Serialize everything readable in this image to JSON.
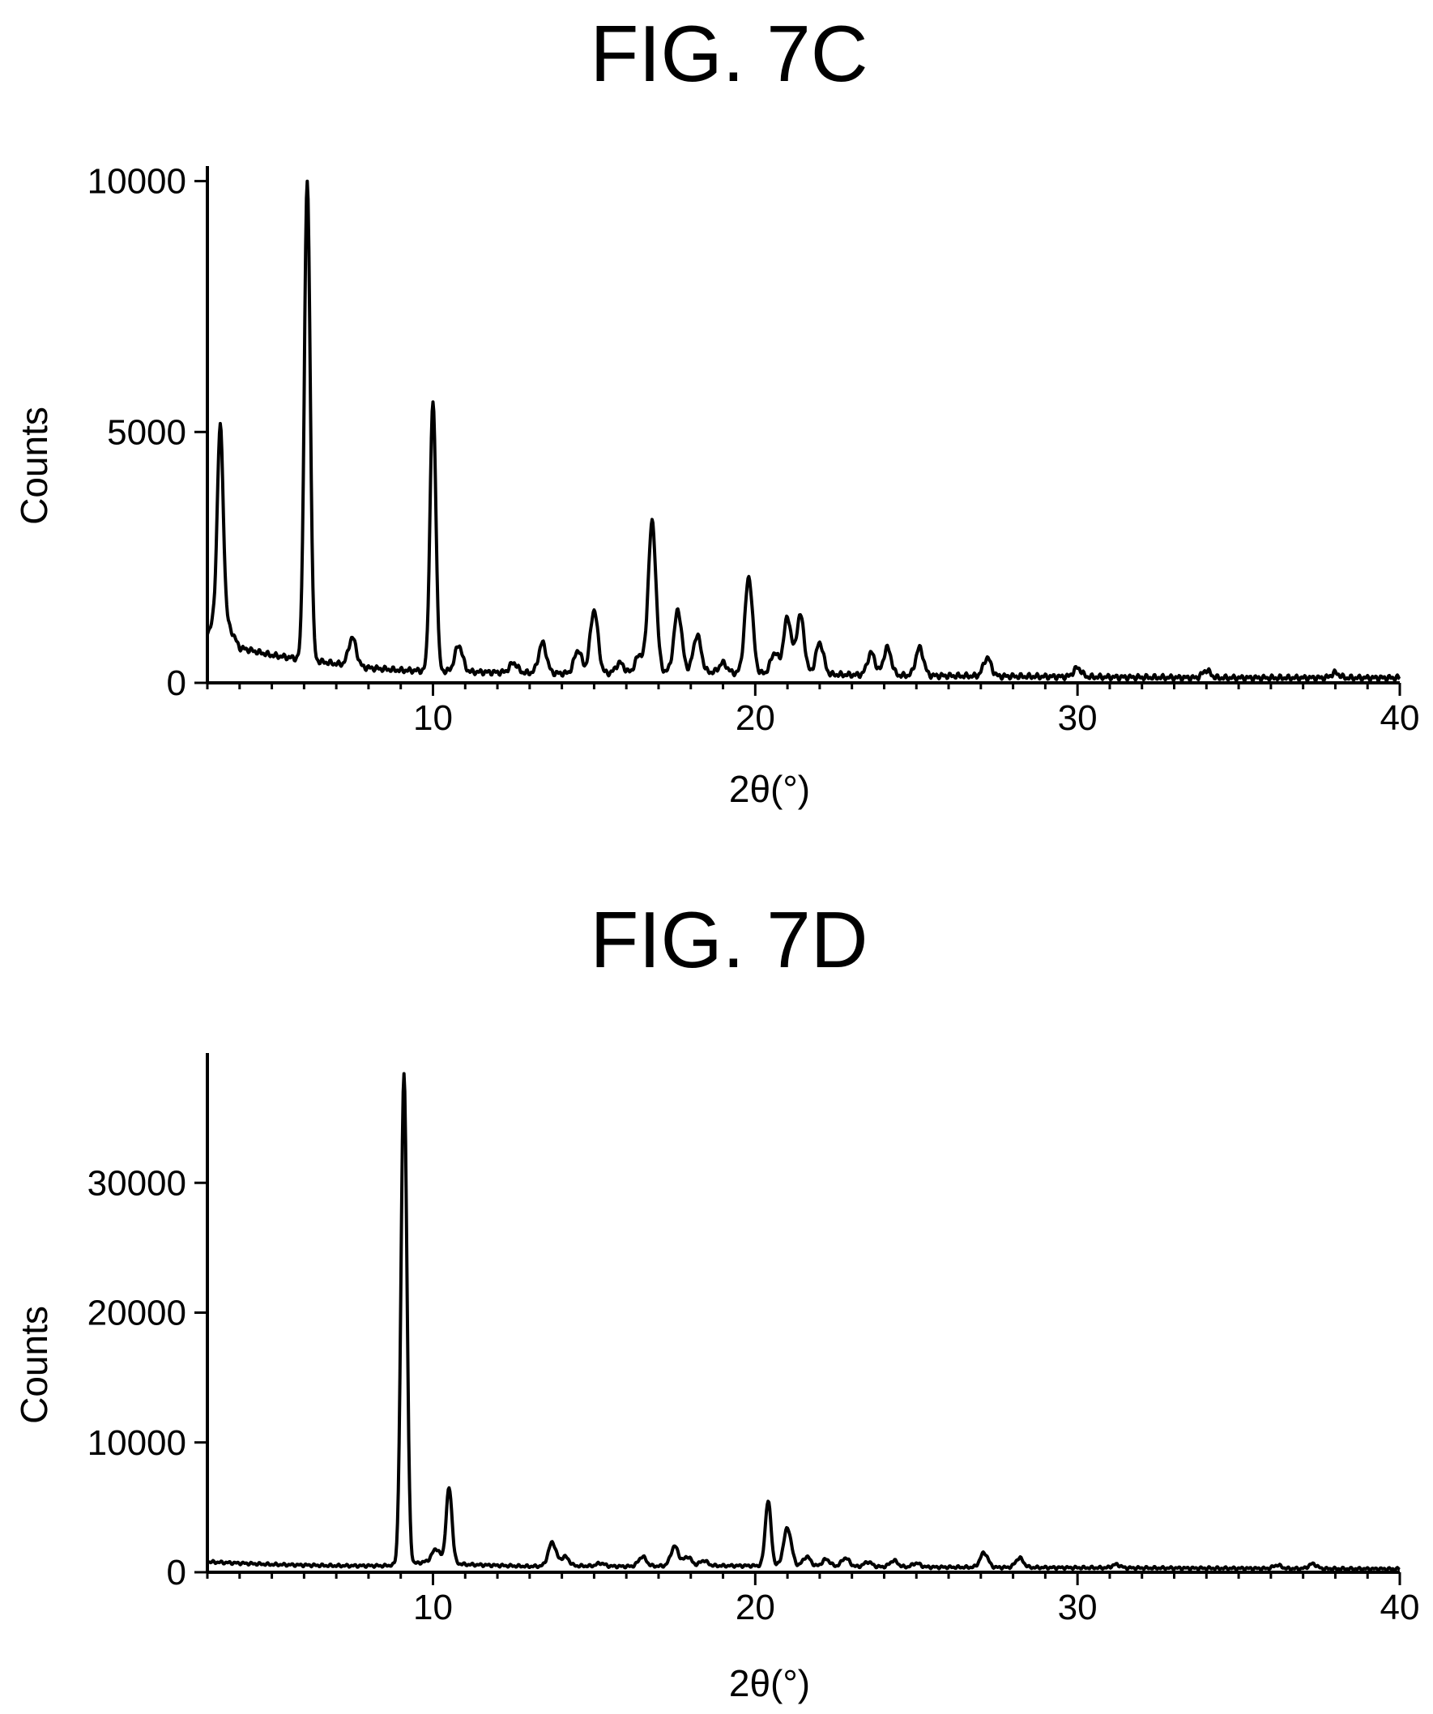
{
  "chart_data": [
    {
      "type": "line",
      "title": "FIG. 7C",
      "xlabel": "2θ(°)",
      "ylabel": "Counts",
      "xlim": [
        3,
        40
      ],
      "ylim": [
        0,
        10300
      ],
      "xticks": [
        10,
        20,
        30,
        40
      ],
      "yticks": [
        0,
        5000,
        10000
      ],
      "grid": false,
      "legend": "none",
      "baseline": [
        [
          3.0,
          1000
        ],
        [
          3.4,
          1500
        ],
        [
          4.0,
          700
        ],
        [
          5.0,
          550
        ],
        [
          6.0,
          470
        ],
        [
          7.0,
          380
        ],
        [
          8.0,
          300
        ],
        [
          9.0,
          250
        ],
        [
          10.0,
          240
        ],
        [
          11.0,
          220
        ],
        [
          12.0,
          210
        ],
        [
          13.0,
          200
        ],
        [
          14.0,
          190
        ],
        [
          15.0,
          190
        ],
        [
          16.0,
          200
        ],
        [
          17.0,
          220
        ],
        [
          18.0,
          230
        ],
        [
          19.0,
          200
        ],
        [
          20.0,
          190
        ],
        [
          22.0,
          170
        ],
        [
          24.0,
          150
        ],
        [
          26.0,
          140
        ],
        [
          28.0,
          130
        ],
        [
          30.0,
          120
        ],
        [
          32.0,
          110
        ],
        [
          34.0,
          100
        ],
        [
          36.0,
          100
        ],
        [
          38.0,
          100
        ],
        [
          40.0,
          100
        ]
      ],
      "peaks": [
        {
          "x": 3.4,
          "y": 5150
        },
        {
          "x": 6.1,
          "y": 10000
        },
        {
          "x": 7.5,
          "y": 900
        },
        {
          "x": 10.0,
          "y": 5600
        },
        {
          "x": 10.8,
          "y": 750
        },
        {
          "x": 12.5,
          "y": 400
        },
        {
          "x": 13.4,
          "y": 800
        },
        {
          "x": 14.5,
          "y": 650
        },
        {
          "x": 15.0,
          "y": 1450
        },
        {
          "x": 15.8,
          "y": 400
        },
        {
          "x": 16.4,
          "y": 550
        },
        {
          "x": 16.8,
          "y": 3200
        },
        {
          "x": 17.6,
          "y": 1450
        },
        {
          "x": 18.2,
          "y": 950
        },
        {
          "x": 19.0,
          "y": 400
        },
        {
          "x": 19.8,
          "y": 2100
        },
        {
          "x": 20.6,
          "y": 600
        },
        {
          "x": 21.0,
          "y": 1300
        },
        {
          "x": 21.4,
          "y": 1350
        },
        {
          "x": 22.0,
          "y": 800
        },
        {
          "x": 23.6,
          "y": 600
        },
        {
          "x": 24.1,
          "y": 700
        },
        {
          "x": 25.1,
          "y": 700
        },
        {
          "x": 27.2,
          "y": 500
        },
        {
          "x": 30.0,
          "y": 300
        },
        {
          "x": 34.0,
          "y": 250
        },
        {
          "x": 38.0,
          "y": 200
        }
      ]
    },
    {
      "type": "line",
      "title": "FIG. 7D",
      "xlabel": "2θ(°)",
      "ylabel": "Counts",
      "xlim": [
        3,
        40
      ],
      "ylim": [
        0,
        40000
      ],
      "xticks": [
        10,
        20,
        30,
        40
      ],
      "yticks": [
        0,
        10000,
        20000,
        30000
      ],
      "grid": false,
      "legend": "none",
      "baseline": [
        [
          3.0,
          800
        ],
        [
          5.0,
          600
        ],
        [
          7.0,
          500
        ],
        [
          8.5,
          500
        ],
        [
          9.5,
          700
        ],
        [
          10.0,
          900
        ],
        [
          11.0,
          600
        ],
        [
          13.0,
          450
        ],
        [
          14.0,
          500
        ],
        [
          16.0,
          450
        ],
        [
          18.0,
          500
        ],
        [
          20.0,
          500
        ],
        [
          22.0,
          450
        ],
        [
          25.0,
          400
        ],
        [
          30.0,
          350
        ],
        [
          35.0,
          300
        ],
        [
          40.0,
          250
        ]
      ],
      "peaks": [
        {
          "x": 9.1,
          "y": 38500
        },
        {
          "x": 10.1,
          "y": 1800
        },
        {
          "x": 10.5,
          "y": 6500
        },
        {
          "x": 13.7,
          "y": 2300
        },
        {
          "x": 14.1,
          "y": 1200
        },
        {
          "x": 15.2,
          "y": 700
        },
        {
          "x": 16.5,
          "y": 1200
        },
        {
          "x": 17.5,
          "y": 2000
        },
        {
          "x": 17.9,
          "y": 1200
        },
        {
          "x": 18.4,
          "y": 900
        },
        {
          "x": 20.4,
          "y": 5500
        },
        {
          "x": 21.0,
          "y": 3400
        },
        {
          "x": 21.6,
          "y": 1200
        },
        {
          "x": 22.2,
          "y": 1000
        },
        {
          "x": 22.8,
          "y": 1100
        },
        {
          "x": 23.5,
          "y": 800
        },
        {
          "x": 24.3,
          "y": 900
        },
        {
          "x": 25.0,
          "y": 700
        },
        {
          "x": 27.1,
          "y": 1500
        },
        {
          "x": 28.2,
          "y": 1100
        },
        {
          "x": 31.2,
          "y": 600
        },
        {
          "x": 36.2,
          "y": 550
        },
        {
          "x": 37.3,
          "y": 650
        }
      ]
    }
  ]
}
